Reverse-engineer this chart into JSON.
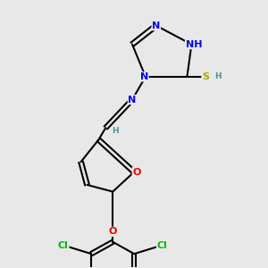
{
  "bg_color": "#e8e8e8",
  "atom_colors": {
    "N": "#0000ee",
    "O": "#ee0000",
    "S": "#aaaa00",
    "Cl": "#00bb00",
    "C": "#000000",
    "H": "#449999"
  },
  "bond_color": "#000000",
  "lw": 1.5,
  "fs": 8.0,
  "xlim": [
    0,
    10
  ],
  "ylim": [
    0,
    10
  ]
}
